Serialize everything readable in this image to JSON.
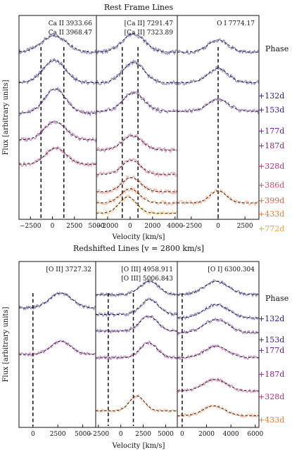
{
  "chart_data": [
    {
      "type": "line",
      "title": "Rest Frame Lines",
      "ylabel": "Flux [arbitrary units]",
      "xlabel": "Velocity [km/s]",
      "phase_header": "Phase",
      "phases": [
        {
          "label": "+132d",
          "color": "#1f1a7a"
        },
        {
          "label": "+153d",
          "color": "#3a1a86"
        },
        {
          "label": "+177d",
          "color": "#5a1a8a"
        },
        {
          "label": "+187d",
          "color": "#8a1e8a"
        },
        {
          "label": "+328d",
          "color": "#b0307a"
        },
        {
          "label": "+386d",
          "color": "#cf4a68"
        },
        {
          "label": "+399d",
          "color": "#e0604e"
        },
        {
          "label": "+433d",
          "color": "#ec7a3a"
        },
        {
          "label": "+772d",
          "color": "#f2a32a"
        }
      ],
      "panels": [
        {
          "lines": [
            "Ca II 3933.66",
            "Ca II 3968.47"
          ],
          "xlim": [
            -3800,
            5000
          ],
          "xticks": [
            -2500,
            0,
            2500,
            5000
          ],
          "markers": [
            -1300,
            1300
          ],
          "series": [
            {
              "phase": "+132d",
              "offset": 0.82,
              "center": 200,
              "width": 2600,
              "amp": 0.08
            },
            {
              "phase": "+153d",
              "offset": 0.67,
              "center": 200,
              "width": 2300,
              "amp": 0.11
            },
            {
              "phase": "+177d",
              "offset": 0.52,
              "center": 300,
              "width": 2200,
              "amp": 0.12
            },
            {
              "phase": "+187d",
              "offset": 0.39,
              "center": 300,
              "width": 2200,
              "amp": 0.09
            },
            {
              "phase": "+328d",
              "offset": 0.27,
              "center": 400,
              "width": 2100,
              "amp": 0.08
            }
          ]
        },
        {
          "lines": [
            "[Ca II] 7291.47",
            "[Ca II] 7323.89"
          ],
          "xlim": [
            -3000,
            4200
          ],
          "xticks": [
            -2000,
            0,
            2000,
            4000
          ],
          "markers": [
            -700,
            700
          ],
          "series": [
            {
              "phase": "+132d",
              "offset": 0.82,
              "center": 300,
              "width": 1800,
              "amp": 0.09
            },
            {
              "phase": "+153d",
              "offset": 0.67,
              "center": 300,
              "width": 1700,
              "amp": 0.1
            },
            {
              "phase": "+177d",
              "offset": 0.53,
              "center": 300,
              "width": 1700,
              "amp": 0.09
            },
            {
              "phase": "+328d",
              "offset": 0.34,
              "center": 200,
              "width": 1600,
              "amp": 0.07
            },
            {
              "phase": "+386d",
              "offset": 0.22,
              "center": 100,
              "width": 1500,
              "amp": 0.07
            },
            {
              "phase": "+399d",
              "offset": 0.135,
              "center": 100,
              "width": 1500,
              "amp": 0.07
            },
            {
              "phase": "+433d",
              "offset": 0.08,
              "center": 0,
              "width": 1500,
              "amp": 0.07
            },
            {
              "phase": "+772d",
              "offset": 0.03,
              "center": -200,
              "width": 1400,
              "amp": 0.08
            }
          ]
        },
        {
          "lines": [
            "O I 7774.17"
          ],
          "xlim": [
            -3800,
            3800
          ],
          "xticks": [
            -2500,
            0,
            2500
          ],
          "markers": [
            0
          ],
          "series": [
            {
              "phase": "+132d",
              "offset": 0.82,
              "center": 0,
              "width": 1700,
              "amp": 0.06
            },
            {
              "phase": "+153d",
              "offset": 0.67,
              "center": 0,
              "width": 1700,
              "amp": 0.07
            },
            {
              "phase": "+177d",
              "offset": 0.53,
              "center": 0,
              "width": 1700,
              "amp": 0.06
            },
            {
              "phase": "+433d",
              "offset": 0.08,
              "center": 0,
              "width": 1400,
              "amp": 0.06
            }
          ]
        }
      ]
    },
    {
      "type": "line",
      "title": "Redshifted Lines [v = 2800 km/s]",
      "ylabel": "Flux [arbitrary units]",
      "xlabel": "Velocity [km/s]",
      "phase_header": "Phase",
      "phases": [
        {
          "label": "+132d",
          "color": "#1f1a7a"
        },
        {
          "label": "+153d",
          "color": "#3a1a86"
        },
        {
          "label": "+177d",
          "color": "#5a1a8a"
        },
        {
          "label": "+187d",
          "color": "#8a1e8a"
        },
        {
          "label": "+328d",
          "color": "#b0307a"
        },
        {
          "label": "+433d",
          "color": "#ec7a3a"
        }
      ],
      "panels": [
        {
          "lines": [
            "[O II] 3727.32"
          ],
          "xlim": [
            -1400,
            6300
          ],
          "xticks": [
            0,
            2500,
            5000
          ],
          "markers": [
            0
          ],
          "series": [
            {
              "phase": "+132d",
              "offset": 0.72,
              "center": 2800,
              "width": 2000,
              "amp": 0.09
            },
            {
              "phase": "+187d",
              "offset": 0.44,
              "center": 2800,
              "width": 1800,
              "amp": 0.08
            }
          ]
        },
        {
          "lines": [
            "[O III] 4958.911",
            "[O III] 5006.843"
          ],
          "xlim": [
            -2800,
            6300
          ],
          "xticks": [
            -2500,
            0,
            2500,
            5000
          ],
          "markers": [
            -1400,
            1400
          ],
          "series": [
            {
              "phase": "+132d",
              "offset": 0.8,
              "center": 3200,
              "width": 1900,
              "amp": 0.08
            },
            {
              "phase": "+153d",
              "offset": 0.68,
              "center": 3200,
              "width": 1800,
              "amp": 0.09
            },
            {
              "phase": "+177d",
              "offset": 0.58,
              "center": 3100,
              "width": 1800,
              "amp": 0.09
            },
            {
              "phase": "+187d",
              "offset": 0.42,
              "center": 3100,
              "width": 1700,
              "amp": 0.09
            },
            {
              "phase": "+433d",
              "offset": 0.1,
              "center": 1800,
              "width": 1500,
              "amp": 0.09
            }
          ]
        },
        {
          "lines": [
            "[O I] 6300.304"
          ],
          "xlim": [
            -400,
            6300
          ],
          "xticks": [
            0,
            2000,
            4000,
            6000
          ],
          "markers": [
            0
          ],
          "series": [
            {
              "phase": "+132d",
              "offset": 0.8,
              "center": 2800,
              "width": 1800,
              "amp": 0.08
            },
            {
              "phase": "+153d",
              "offset": 0.66,
              "center": 2800,
              "width": 1800,
              "amp": 0.08
            },
            {
              "phase": "+177d",
              "offset": 0.57,
              "center": 2800,
              "width": 1800,
              "amp": 0.08
            },
            {
              "phase": "+187d",
              "offset": 0.42,
              "center": 2800,
              "width": 1700,
              "amp": 0.07
            },
            {
              "phase": "+328d",
              "offset": 0.22,
              "center": 2700,
              "width": 1700,
              "amp": 0.07
            },
            {
              "phase": "+433d",
              "offset": 0.07,
              "center": 2600,
              "width": 1600,
              "amp": 0.06
            }
          ]
        }
      ]
    }
  ]
}
